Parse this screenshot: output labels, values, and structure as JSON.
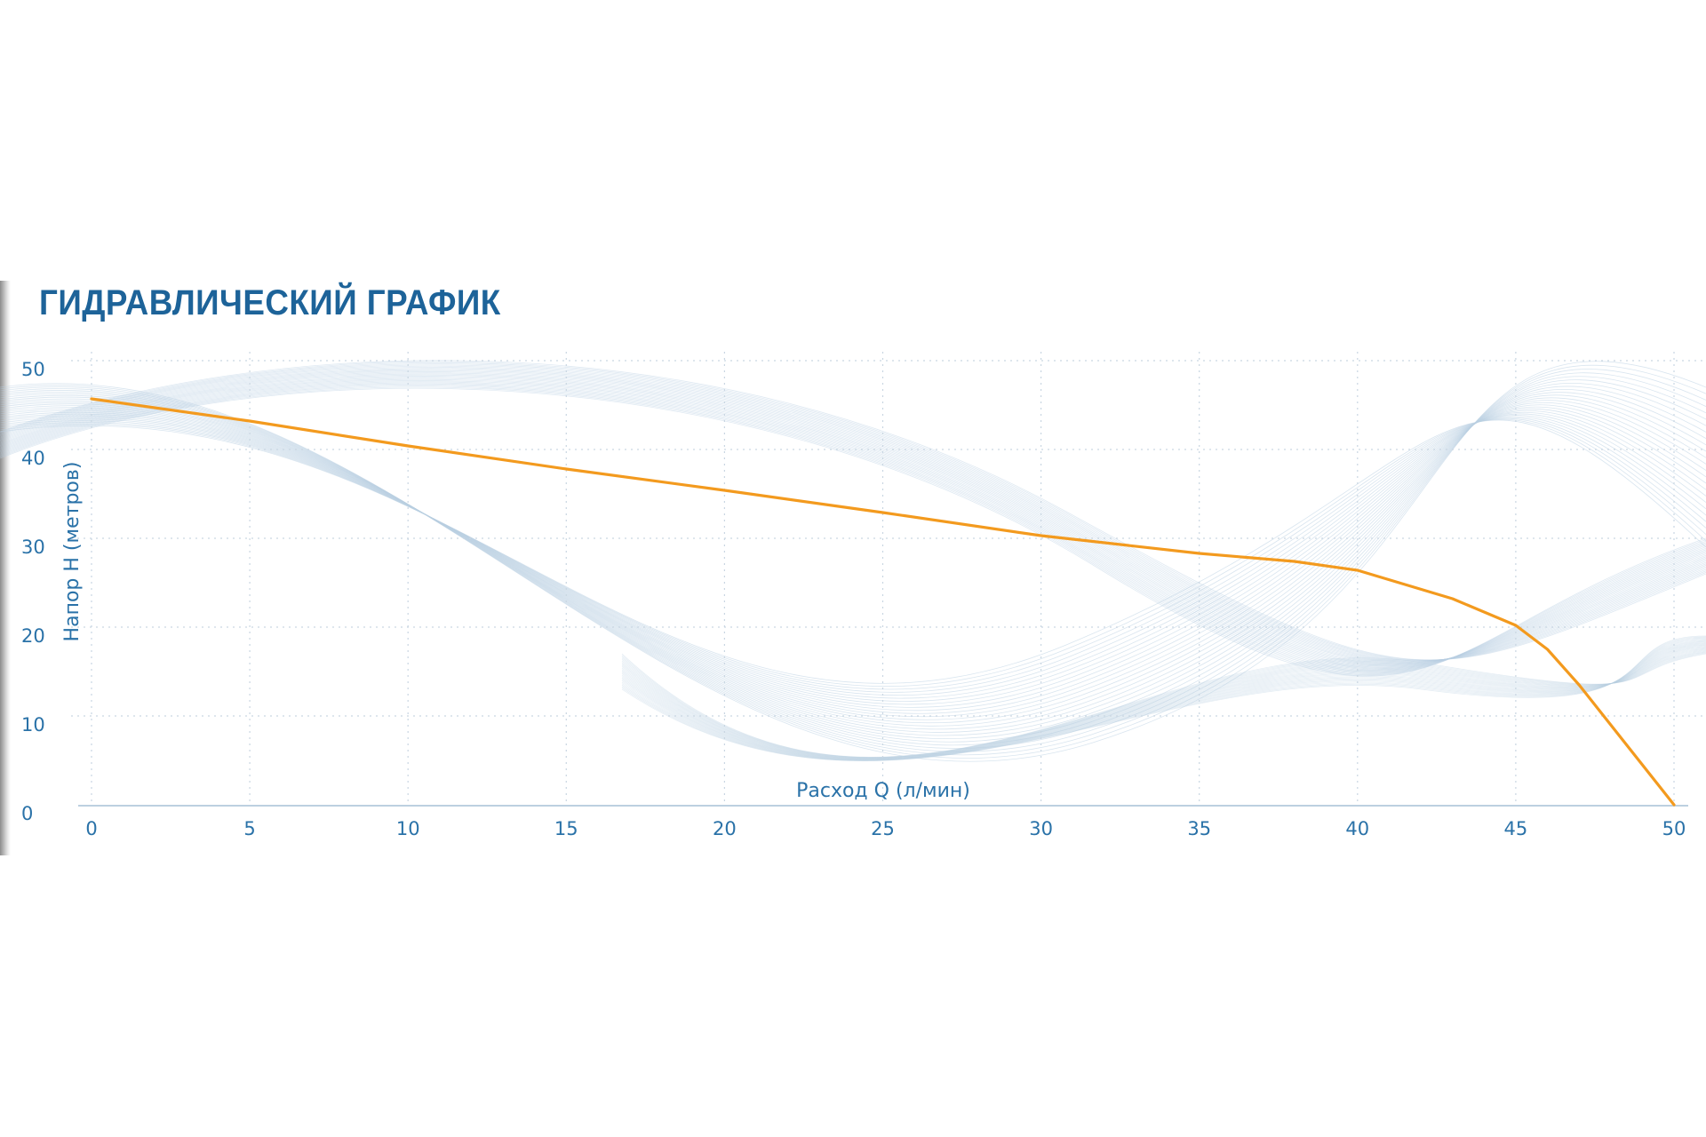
{
  "chart_data": {
    "type": "line",
    "title": "ГИДРАВЛИЧЕСКИЙ ГРАФИК",
    "xlabel": "Расход Q (л/мин)",
    "ylabel": "Напор H (метров)",
    "xlim": [
      0,
      50
    ],
    "ylim": [
      0,
      50
    ],
    "xticks": [
      "0",
      "5",
      "10",
      "15",
      "20",
      "25",
      "30",
      "35",
      "40",
      "45",
      "50"
    ],
    "yticks": [
      "0",
      "10",
      "20",
      "30",
      "40",
      "50"
    ],
    "grid": true,
    "series": [
      {
        "color": "#f39a1e",
        "x": [
          0,
          5,
          10,
          15,
          20,
          25,
          30,
          35,
          38,
          40,
          43,
          45,
          46,
          47,
          48,
          49,
          50
        ],
        "y": [
          45.7,
          43.2,
          40.4,
          37.8,
          35.4,
          32.9,
          30.3,
          28.3,
          27.4,
          26.4,
          23.2,
          20.2,
          17.5,
          13.5,
          9.0,
          4.5,
          0
        ]
      }
    ]
  },
  "colors": {
    "accent": "#1d6399",
    "axis_text": "#2a72a8",
    "grid": "#c9d6e2",
    "wave": "#b9cfe2"
  }
}
